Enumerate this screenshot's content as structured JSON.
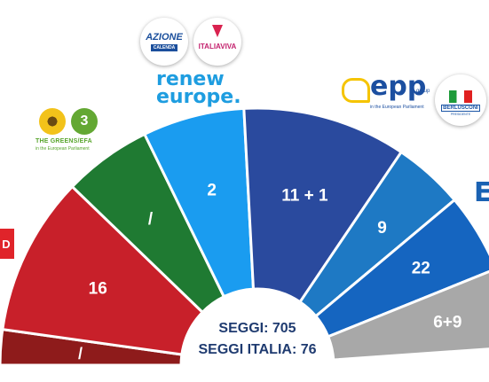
{
  "chart_data": {
    "type": "parliament-hemicycle",
    "title": "",
    "center_text": [
      "SEGGI: 705",
      "SEGGI ITALIA: 76"
    ],
    "segments": [
      {
        "label": "/",
        "value": 0,
        "color": "#8e1b1b"
      },
      {
        "label": "16",
        "value": 16,
        "color": "#c8202a"
      },
      {
        "label": "/",
        "value": 0,
        "color": "#1f7a32"
      },
      {
        "label": "2",
        "value": 2,
        "color": "#1a9cf0"
      },
      {
        "label": "11 + 1",
        "value": 12,
        "color": "#2a4a9e"
      },
      {
        "label": "9",
        "value": 9,
        "color": "#1e79c4"
      },
      {
        "label": "22",
        "value": 22,
        "color": "#1565c0"
      },
      {
        "label": "6+9",
        "value": 15,
        "color": "#a8a8a8"
      }
    ]
  },
  "logos": {
    "azione": {
      "top": "AZIONE",
      "sub": "CALENDA"
    },
    "italiaviva": {
      "text": "ITALIAVIVA"
    },
    "renew": {
      "line1": "renew",
      "line2": "europe."
    },
    "greens": {
      "badge": "3",
      "name": "THE GREENS/EFA",
      "sub": "in the European Parliament"
    },
    "epp": {
      "name": "epp",
      "group": "group",
      "sub": "in the European Parliament"
    },
    "forzaitalia": {
      "name": "BERLUSCONI",
      "sub": "PRESIDENTE"
    },
    "ecr": {
      "text": "E"
    },
    "sd": {
      "text": "D"
    }
  }
}
